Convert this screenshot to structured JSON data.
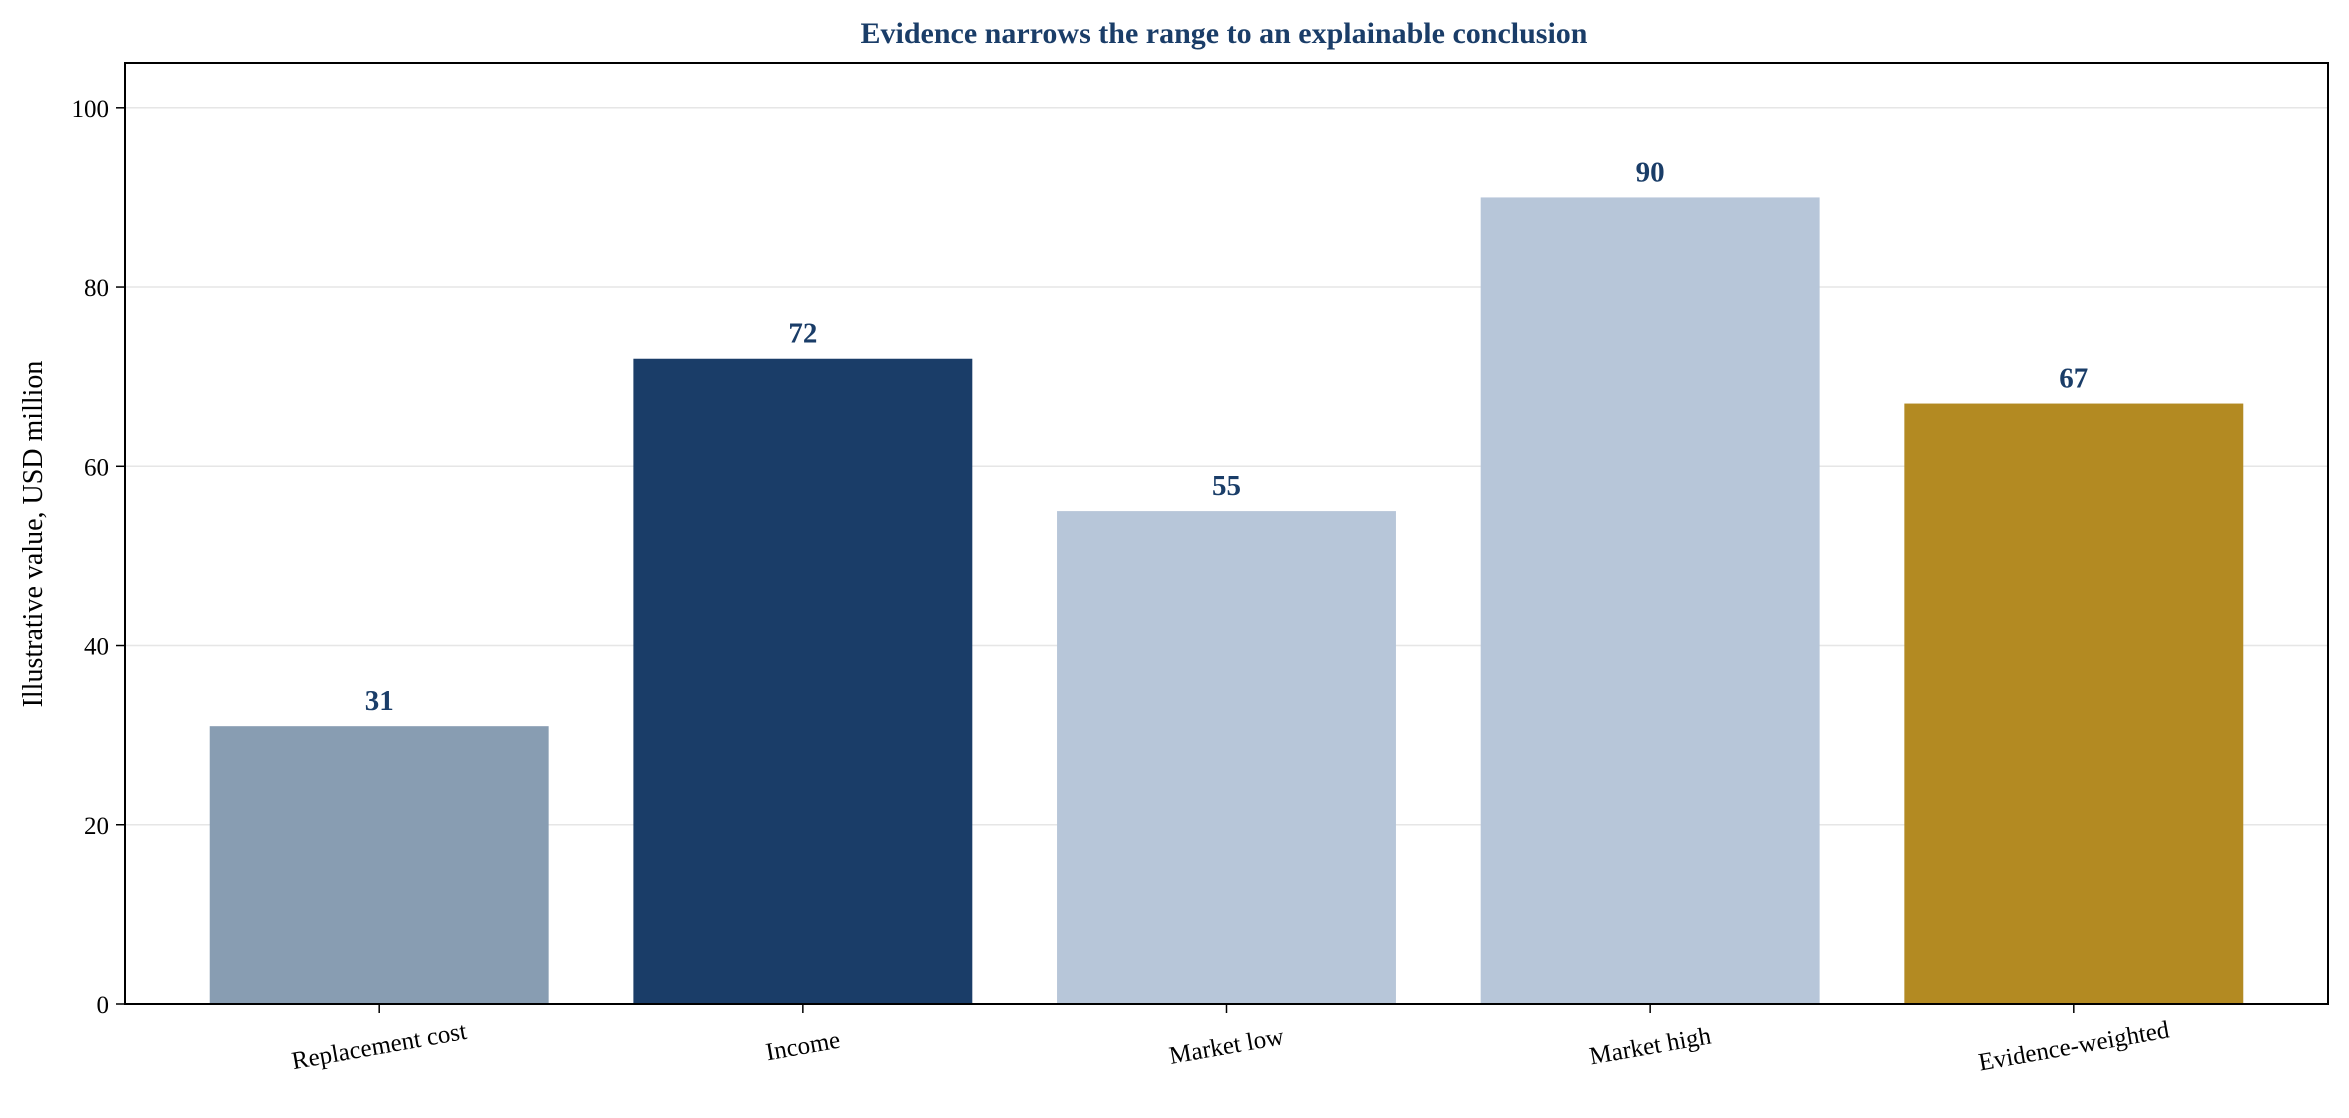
{
  "chart_data": {
    "type": "bar",
    "title": "Evidence narrows the range to an explainable conclusion",
    "xlabel": "",
    "ylabel": "Illustrative value, USD million",
    "categories": [
      "Replacement cost",
      "Income",
      "Market low",
      "Market high",
      "Evidence-weighted"
    ],
    "values": [
      31,
      72,
      55,
      90,
      67
    ],
    "data_labels": [
      "31",
      "72",
      "55",
      "90",
      "67"
    ],
    "bar_colors": [
      "#889db2",
      "#1a3d68",
      "#b7c6d9",
      "#b7c6d9",
      "#b38a22"
    ],
    "ylim": [
      0,
      105
    ],
    "yticks": [
      0,
      20,
      40,
      60,
      80,
      100
    ],
    "ytick_labels": [
      "0",
      "20",
      "40",
      "60",
      "80",
      "100"
    ],
    "grid": "horizontal",
    "legend": "none",
    "colors": {
      "title": "#1a3d68",
      "data_label": "#1a3d68",
      "gridline": "#e6e6e6",
      "axis": "#000000"
    }
  }
}
